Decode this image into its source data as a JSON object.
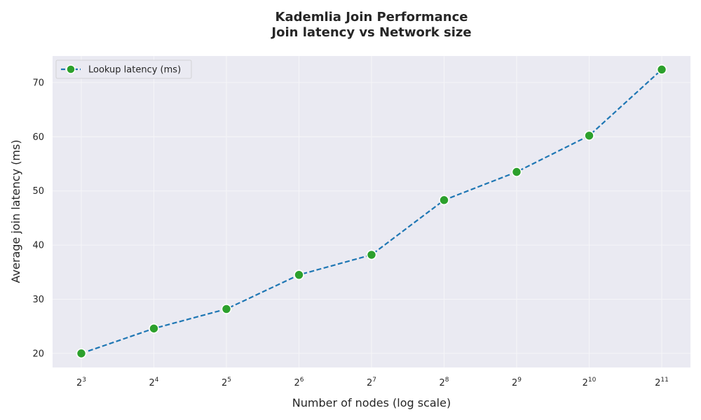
{
  "chart_data": {
    "type": "line",
    "title": "Kademlia Join Performance",
    "subtitle": "Join latency vs Network size",
    "xlabel": "Number of nodes (log scale)",
    "ylabel": "Average join latency (ms)",
    "x_scale": "log2",
    "x": [
      8,
      16,
      32,
      64,
      128,
      256,
      512,
      1024,
      2048
    ],
    "x_tick_labels": [
      {
        "base": "2",
        "exp": "3"
      },
      {
        "base": "2",
        "exp": "4"
      },
      {
        "base": "2",
        "exp": "5"
      },
      {
        "base": "2",
        "exp": "6"
      },
      {
        "base": "2",
        "exp": "7"
      },
      {
        "base": "2",
        "exp": "8"
      },
      {
        "base": "2",
        "exp": "9"
      },
      {
        "base": "2",
        "exp": "10"
      },
      {
        "base": "2",
        "exp": "11"
      }
    ],
    "ylim": [
      17.4,
      74.9
    ],
    "y_ticks": [
      20,
      30,
      40,
      50,
      60,
      70
    ],
    "grid": true,
    "legend_position": "top-left",
    "series": [
      {
        "name": "Lookup latency (ms)",
        "values": [
          20.0,
          24.6,
          28.2,
          34.5,
          38.2,
          48.3,
          53.5,
          60.2,
          72.4
        ],
        "line_color": "#1f77b4",
        "marker_color": "#2ca02c",
        "line_style": "dashed"
      }
    ],
    "colors": {
      "plot_background": "#eaeaf2",
      "grid": "#f5f5f8"
    }
  }
}
